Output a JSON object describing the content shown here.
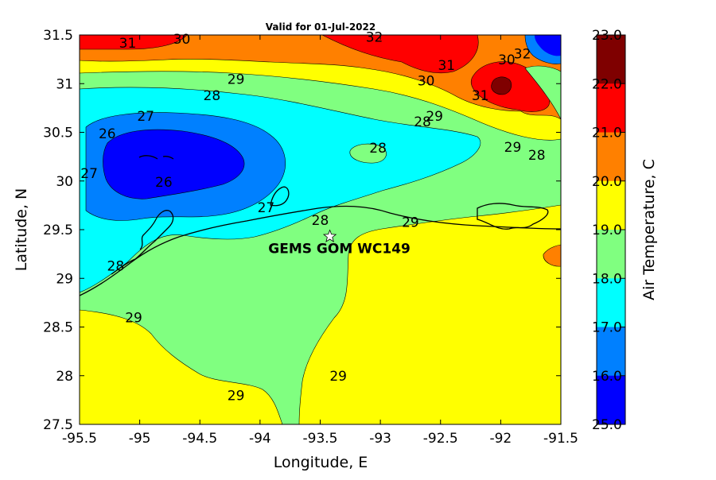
{
  "title": "Valid for 01-Jul-2022",
  "xlabel": "Longitude, E",
  "ylabel": "Latitude, N",
  "colorbar": {
    "label": "Air Temperature, C",
    "ticks": [
      "23.0",
      "22.0",
      "21.0",
      "20.0",
      "19.0",
      "18.0",
      "17.0",
      "16.0",
      "25.0"
    ],
    "colors": [
      "#7f0000",
      "#ff0000",
      "#ff8000",
      "#ffff00",
      "#80ff80",
      "#00ffff",
      "#0080ff",
      "#0000ff"
    ]
  },
  "station_label": "GEMS GOM WC149",
  "chart_data": {
    "type": "heatmap",
    "xlim": [
      -95.5,
      -91.5
    ],
    "ylim": [
      27.5,
      31.5
    ],
    "x_ticks": [
      "-95.5",
      "-95",
      "-94.5",
      "-94",
      "-93.5",
      "-93",
      "-92.5",
      "-92",
      "-91.5"
    ],
    "y_ticks": [
      "31.5",
      "31",
      "30.5",
      "30",
      "29.5",
      "29",
      "28.5",
      "28",
      "27.5"
    ],
    "station": {
      "lon": -93.42,
      "lat": 29.43,
      "label": "GEMS GOM WC149"
    },
    "contour_labels": [
      {
        "text": "31",
        "lon": -95.1,
        "lat": 31.37
      },
      {
        "text": "30",
        "lon": -94.65,
        "lat": 31.41
      },
      {
        "text": "32",
        "lon": -93.05,
        "lat": 31.43
      },
      {
        "text": "31",
        "lon": -92.45,
        "lat": 31.14
      },
      {
        "text": "30",
        "lon": -92.62,
        "lat": 30.98
      },
      {
        "text": "31",
        "lon": -92.17,
        "lat": 30.83
      },
      {
        "text": "30",
        "lon": -91.95,
        "lat": 31.2
      },
      {
        "text": "32",
        "lon": -91.82,
        "lat": 31.26
      },
      {
        "text": "29",
        "lon": -94.2,
        "lat": 31.0
      },
      {
        "text": "28",
        "lon": -94.4,
        "lat": 30.83
      },
      {
        "text": "27",
        "lon": -94.95,
        "lat": 30.62
      },
      {
        "text": "29",
        "lon": -92.55,
        "lat": 30.62
      },
      {
        "text": "28",
        "lon": -92.65,
        "lat": 30.56
      },
      {
        "text": "26",
        "lon": -95.27,
        "lat": 30.44
      },
      {
        "text": "28",
        "lon": -93.02,
        "lat": 30.29
      },
      {
        "text": "29",
        "lon": -91.9,
        "lat": 30.3
      },
      {
        "text": "28",
        "lon": -91.7,
        "lat": 30.22
      },
      {
        "text": "27",
        "lon": -95.42,
        "lat": 30.03
      },
      {
        "text": "26",
        "lon": -94.8,
        "lat": 29.94
      },
      {
        "text": "27",
        "lon": -93.95,
        "lat": 29.68
      },
      {
        "text": "28",
        "lon": -93.5,
        "lat": 29.55
      },
      {
        "text": "29",
        "lon": -92.75,
        "lat": 29.53
      },
      {
        "text": "28",
        "lon": -95.2,
        "lat": 29.08
      },
      {
        "text": "29",
        "lon": -95.05,
        "lat": 28.55
      },
      {
        "text": "29",
        "lon": -93.35,
        "lat": 27.95
      },
      {
        "text": "29",
        "lon": -94.2,
        "lat": 27.75
      }
    ]
  }
}
